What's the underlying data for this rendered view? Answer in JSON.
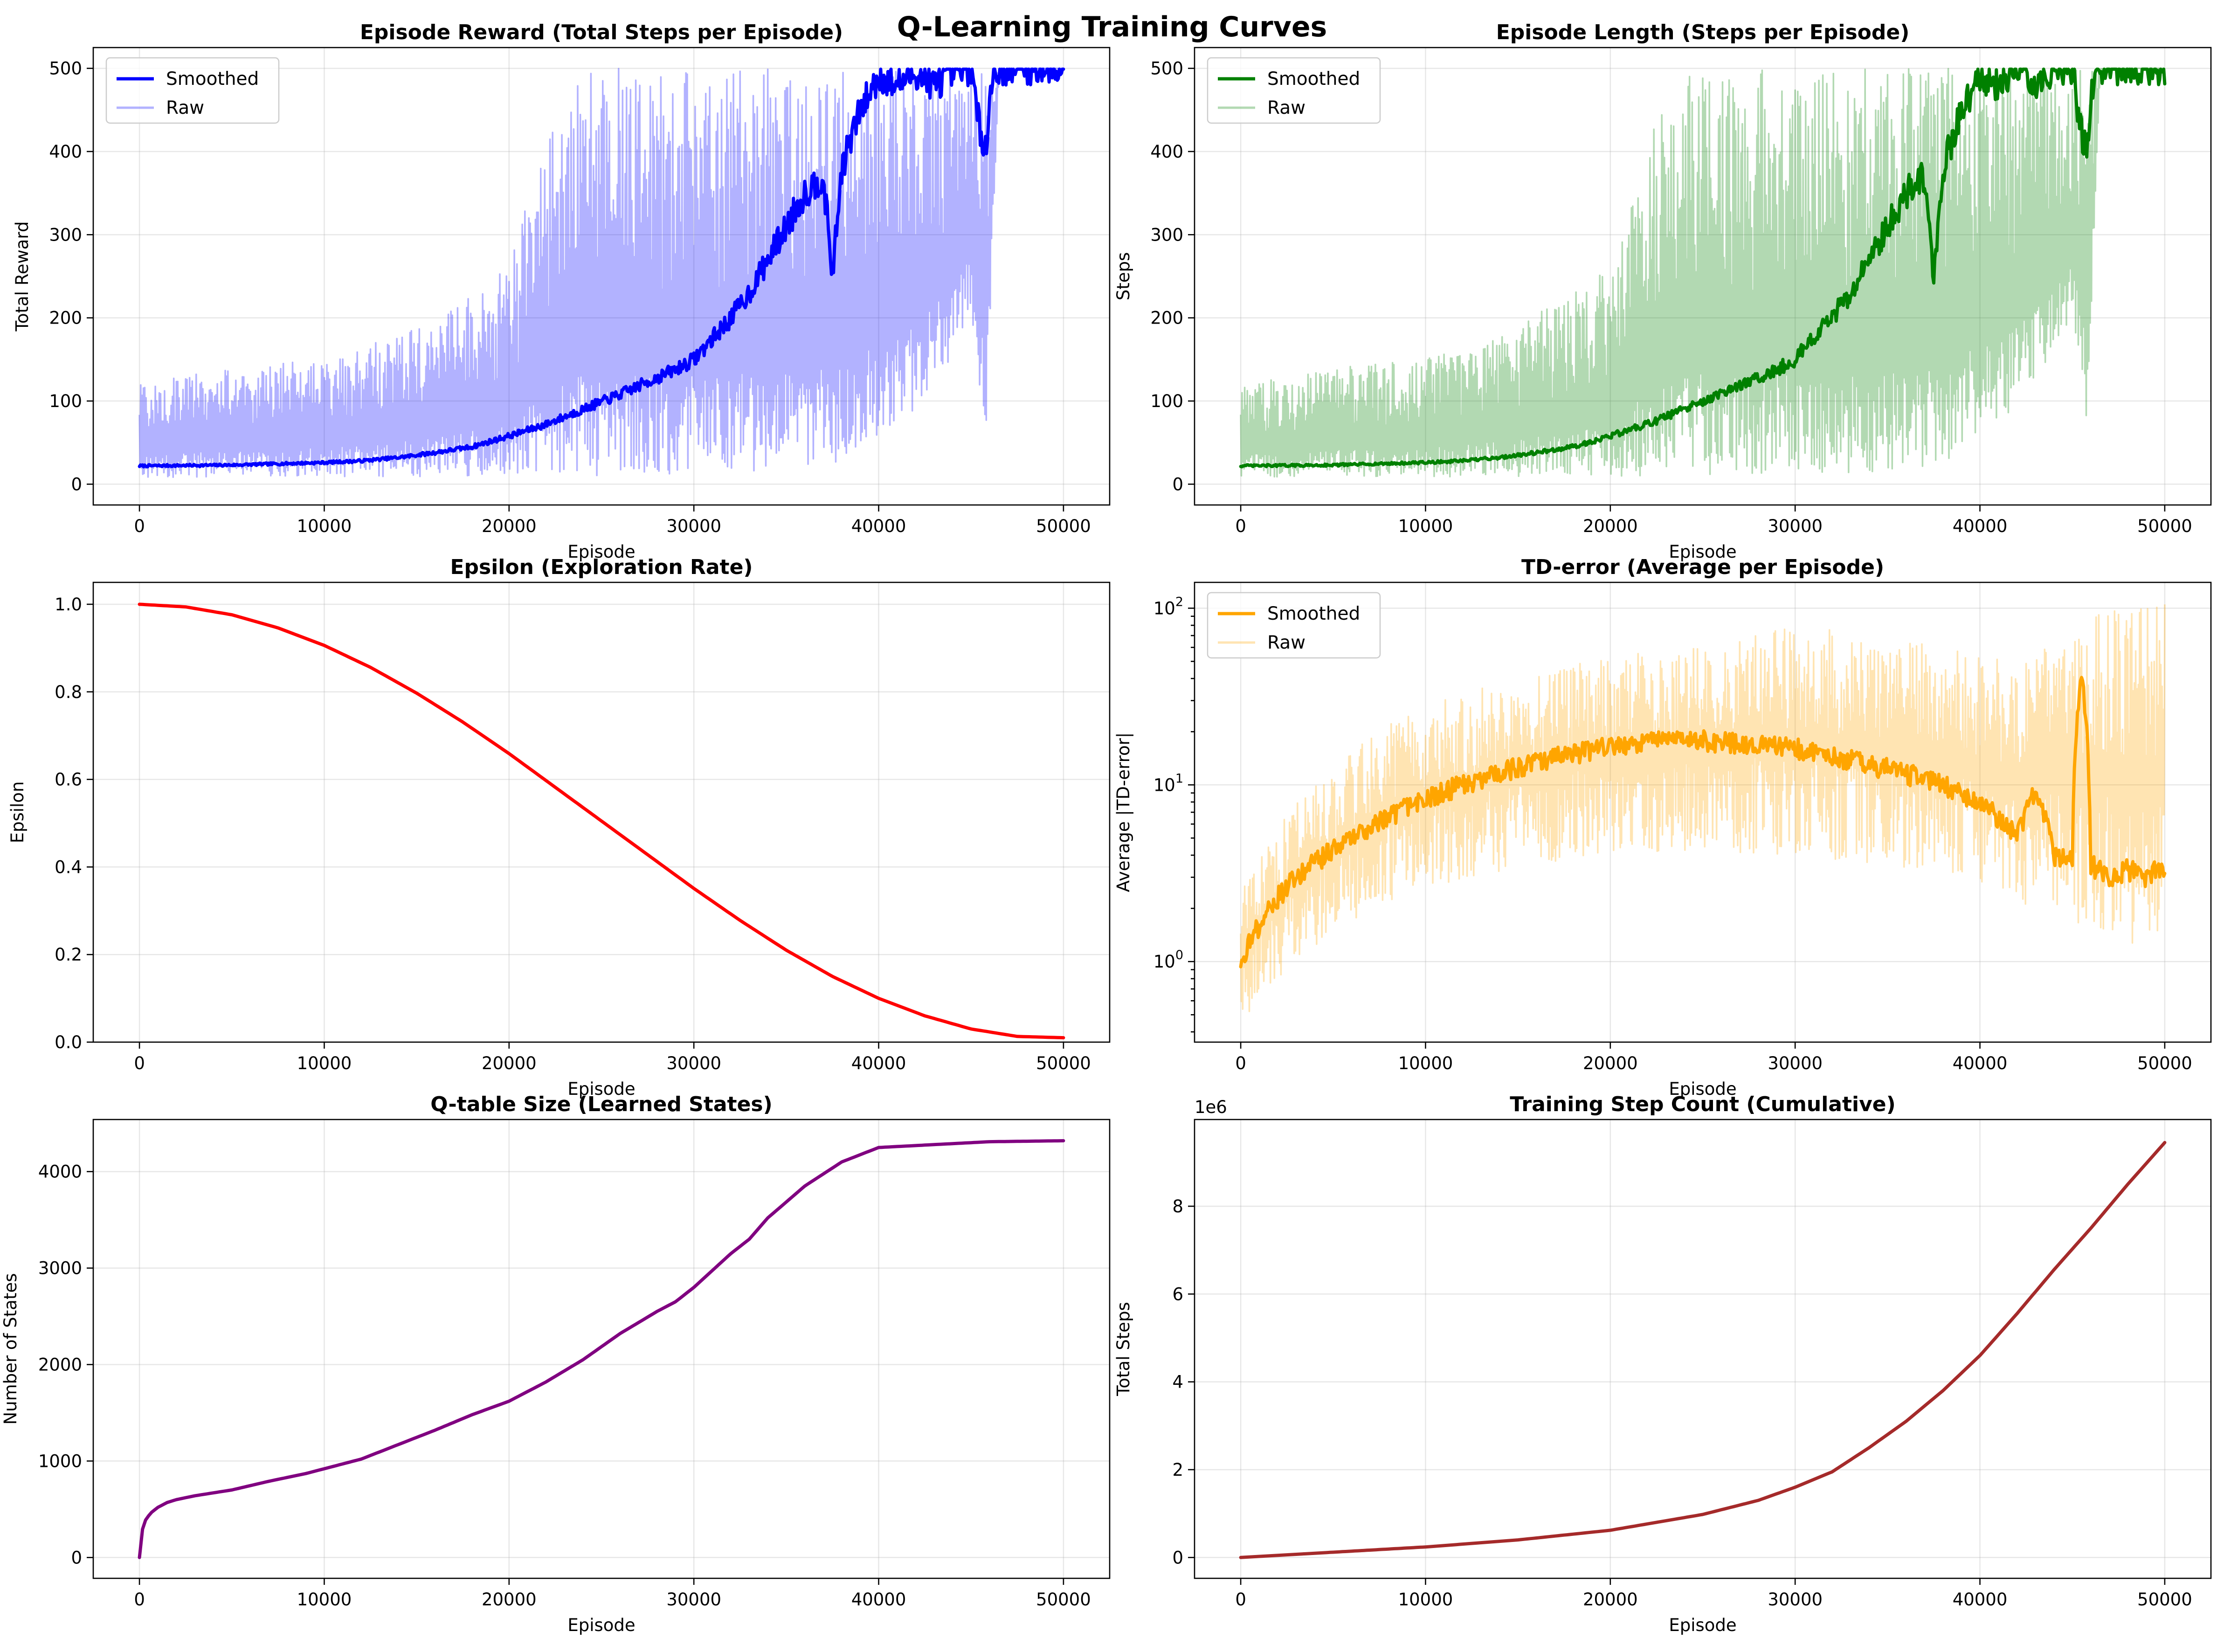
{
  "figure": {
    "title": "Q-Learning Training Curves"
  },
  "chart_data": [
    {
      "id": "reward",
      "type": "line",
      "title": "Episode Reward (Total Steps per Episode)",
      "xlabel": "Episode",
      "ylabel": "Total Reward",
      "xlim": [
        -2500,
        52500
      ],
      "ylim": [
        -25,
        525
      ],
      "xticks": [
        0,
        10000,
        20000,
        30000,
        40000,
        50000
      ],
      "yticks": [
        0,
        100,
        200,
        300,
        400,
        500
      ],
      "grid": true,
      "legend": {
        "position": "top-left",
        "entries": [
          "Smoothed",
          "Raw"
        ]
      },
      "series": [
        {
          "name": "Smoothed",
          "color": "#0000ff",
          "style": "line",
          "x": [
            0,
            5000,
            10000,
            12000,
            14000,
            16000,
            18000,
            20000,
            22000,
            24000,
            26000,
            28000,
            29000,
            30000,
            31000,
            32000,
            33000,
            34000,
            35000,
            36000,
            37000,
            37500,
            38000,
            39000,
            40000,
            41000,
            42000,
            43000,
            44000,
            45000,
            45500,
            45800,
            46200,
            47000,
            50000
          ],
          "y": [
            22,
            23,
            26,
            28,
            32,
            38,
            45,
            58,
            72,
            90,
            108,
            128,
            138,
            150,
            175,
            200,
            230,
            270,
            310,
            350,
            370,
            250,
            380,
            450,
            490,
            480,
            495,
            480,
            495,
            500,
            420,
            410,
            498,
            500,
            500
          ]
        },
        {
          "name": "Raw",
          "color": "#0000ff",
          "style": "band",
          "x": [
            0,
            5000,
            10000,
            15000,
            20000,
            22000,
            24000,
            26000,
            28000,
            30000,
            32000,
            34000,
            36000,
            38000,
            40000,
            42000,
            44000,
            45000,
            45800,
            46500,
            48000,
            50000
          ],
          "y_low": [
            8,
            9,
            9,
            9,
            10,
            10,
            10,
            11,
            11,
            12,
            13,
            15,
            18,
            25,
            60,
            90,
            150,
            200,
            60,
            498,
            500,
            500
          ],
          "y_high": [
            120,
            140,
            150,
            190,
            260,
            420,
            500,
            500,
            500,
            500,
            500,
            500,
            500,
            500,
            500,
            500,
            500,
            500,
            500,
            500,
            500,
            500
          ]
        }
      ]
    },
    {
      "id": "length",
      "type": "line",
      "title": "Episode Length (Steps per Episode)",
      "xlabel": "Episode",
      "ylabel": "Steps",
      "xlim": [
        -2500,
        52500
      ],
      "ylim": [
        -25,
        525
      ],
      "xticks": [
        0,
        10000,
        20000,
        30000,
        40000,
        50000
      ],
      "yticks": [
        0,
        100,
        200,
        300,
        400,
        500
      ],
      "grid": true,
      "legend": {
        "position": "top-left",
        "entries": [
          "Smoothed",
          "Raw"
        ]
      },
      "series": [
        {
          "name": "Smoothed",
          "color": "#008000",
          "style": "line",
          "x": [
            0,
            5000,
            10000,
            12000,
            14000,
            16000,
            18000,
            20000,
            22000,
            24000,
            26000,
            28000,
            29000,
            30000,
            31000,
            32000,
            33000,
            34000,
            35000,
            36000,
            37000,
            37500,
            38000,
            39000,
            40000,
            41000,
            42000,
            43000,
            44000,
            45000,
            45500,
            45800,
            46200,
            47000,
            50000
          ],
          "y": [
            22,
            23,
            26,
            28,
            32,
            38,
            45,
            58,
            72,
            90,
            108,
            128,
            138,
            150,
            175,
            200,
            230,
            270,
            310,
            350,
            370,
            250,
            380,
            450,
            490,
            480,
            495,
            480,
            495,
            500,
            420,
            410,
            498,
            500,
            500
          ]
        },
        {
          "name": "Raw",
          "color": "#008000",
          "style": "band",
          "x": [
            0,
            5000,
            10000,
            15000,
            20000,
            22000,
            24000,
            26000,
            28000,
            30000,
            32000,
            34000,
            36000,
            38000,
            40000,
            42000,
            44000,
            45000,
            45800,
            46500,
            48000,
            50000
          ],
          "y_low": [
            8,
            9,
            9,
            9,
            10,
            10,
            10,
            11,
            11,
            12,
            13,
            15,
            18,
            25,
            60,
            90,
            150,
            200,
            60,
            498,
            500,
            500
          ],
          "y_high": [
            120,
            140,
            150,
            190,
            260,
            420,
            500,
            500,
            500,
            500,
            500,
            500,
            500,
            500,
            500,
            500,
            500,
            500,
            500,
            500,
            500,
            500
          ]
        }
      ]
    },
    {
      "id": "epsilon",
      "type": "line",
      "title": "Epsilon (Exploration Rate)",
      "xlabel": "Episode",
      "ylabel": "Epsilon",
      "xlim": [
        -2500,
        52500
      ],
      "ylim": [
        0,
        1.05
      ],
      "xticks": [
        0,
        10000,
        20000,
        30000,
        40000,
        50000
      ],
      "yticks": [
        0.0,
        0.2,
        0.4,
        0.6,
        0.8,
        1.0
      ],
      "grid": true,
      "series": [
        {
          "color": "#ff0000",
          "style": "line",
          "x": [
            0,
            2500,
            5000,
            7500,
            10000,
            12500,
            15000,
            17500,
            20000,
            22500,
            25000,
            27500,
            30000,
            32500,
            35000,
            37500,
            40000,
            42500,
            45000,
            47500,
            50000
          ],
          "y": [
            1.0,
            0.994,
            0.976,
            0.946,
            0.906,
            0.856,
            0.797,
            0.731,
            0.659,
            0.582,
            0.505,
            0.428,
            0.351,
            0.278,
            0.21,
            0.15,
            0.1,
            0.06,
            0.03,
            0.013,
            0.01
          ]
        }
      ]
    },
    {
      "id": "tderror",
      "type": "line",
      "title": "TD-error (Average per Episode)",
      "xlabel": "Episode",
      "ylabel": "Average |TD-error|",
      "yscale": "log",
      "xlim": [
        -2500,
        52500
      ],
      "ylim": [
        0.35,
        140
      ],
      "xticks": [
        0,
        10000,
        20000,
        30000,
        40000,
        50000
      ],
      "yticks": [
        1,
        10,
        100
      ],
      "grid": true,
      "legend": {
        "position": "top-left",
        "entries": [
          "Smoothed",
          "Raw"
        ]
      },
      "series": [
        {
          "name": "Smoothed",
          "color": "#ffa500",
          "style": "line",
          "x": [
            0,
            1000,
            2000,
            4000,
            6000,
            8000,
            10000,
            12000,
            14000,
            16000,
            18000,
            20000,
            22000,
            24000,
            26000,
            28000,
            30000,
            32000,
            34000,
            36000,
            38000,
            39000,
            40000,
            41000,
            42000,
            43000,
            44000,
            45000,
            45500,
            46000,
            47000,
            48000,
            49000,
            50000
          ],
          "y": [
            1.0,
            1.6,
            2.3,
            3.6,
            5.0,
            6.6,
            8.2,
            10.0,
            11.5,
            13.5,
            15.0,
            16.5,
            17.5,
            18.0,
            17.5,
            17.0,
            16.0,
            14.5,
            13.0,
            11.5,
            10.0,
            9.0,
            8.0,
            6.5,
            5.0,
            9.0,
            4.0,
            3.8,
            40.0,
            3.5,
            3.0,
            3.3,
            3.0,
            3.5
          ]
        },
        {
          "name": "Raw",
          "color": "#ffa500",
          "style": "band",
          "x": [
            0,
            1000,
            2000,
            4000,
            6000,
            8000,
            10000,
            14000,
            18000,
            22000,
            26000,
            30000,
            34000,
            38000,
            40000,
            42000,
            44000,
            46000,
            48000,
            50000
          ],
          "y_low": [
            0.45,
            0.6,
            0.8,
            1.2,
            1.7,
            2.2,
            2.6,
            3.2,
            3.8,
            4.0,
            4.2,
            4.0,
            3.5,
            3.2,
            2.8,
            2.2,
            1.8,
            1.4,
            1.2,
            1.1
          ],
          "y_high": [
            2.5,
            4.0,
            6.0,
            10.0,
            15.0,
            22.0,
            28.0,
            38.0,
            50.0,
            58.0,
            62.0,
            80.0,
            70.0,
            60.0,
            55.0,
            50.0,
            70.0,
            95.0,
            100.0,
            120.0
          ]
        }
      ]
    },
    {
      "id": "qtable",
      "type": "line",
      "title": "Q-table Size (Learned States)",
      "xlabel": "Episode",
      "ylabel": "Number of States",
      "xlim": [
        -2500,
        52500
      ],
      "ylim": [
        -216,
        4540
      ],
      "xticks": [
        0,
        10000,
        20000,
        30000,
        40000,
        50000
      ],
      "yticks": [
        0,
        1000,
        2000,
        3000,
        4000
      ],
      "grid": true,
      "series": [
        {
          "color": "#800080",
          "style": "line",
          "x": [
            0,
            100,
            300,
            600,
            1000,
            1500,
            2000,
            3000,
            5000,
            7000,
            9000,
            10000,
            12000,
            14000,
            16000,
            18000,
            20000,
            22000,
            24000,
            26000,
            28000,
            29000,
            30000,
            32000,
            33000,
            34000,
            36000,
            38000,
            40000,
            42000,
            44000,
            46000,
            48000,
            50000
          ],
          "y": [
            0,
            250,
            380,
            460,
            520,
            570,
            600,
            640,
            700,
            790,
            870,
            920,
            1020,
            1170,
            1320,
            1480,
            1620,
            1820,
            2050,
            2320,
            2550,
            2650,
            2800,
            3150,
            3300,
            3520,
            3850,
            4100,
            4250,
            4270,
            4290,
            4310,
            4315,
            4320
          ]
        }
      ]
    },
    {
      "id": "stepcount",
      "type": "line",
      "title": "Training Step Count (Cumulative)",
      "xlabel": "Episode",
      "ylabel": "Total Steps",
      "y_offset_label": "1e6",
      "xlim": [
        -2500,
        52500
      ],
      "ylim": [
        -0.475,
        9.975
      ],
      "xticks": [
        0,
        10000,
        20000,
        30000,
        40000,
        50000
      ],
      "yticks": [
        0,
        2,
        4,
        6,
        8
      ],
      "grid": true,
      "series": [
        {
          "color": "#a52a2a",
          "style": "line",
          "x": [
            0,
            5000,
            10000,
            15000,
            20000,
            25000,
            28000,
            30000,
            32000,
            34000,
            36000,
            38000,
            40000,
            42000,
            44000,
            46000,
            48000,
            50000
          ],
          "y": [
            0,
            0.12,
            0.24,
            0.4,
            0.62,
            0.98,
            1.3,
            1.6,
            1.95,
            2.5,
            3.1,
            3.8,
            4.6,
            5.55,
            6.55,
            7.5,
            8.5,
            9.45
          ]
        }
      ]
    }
  ]
}
